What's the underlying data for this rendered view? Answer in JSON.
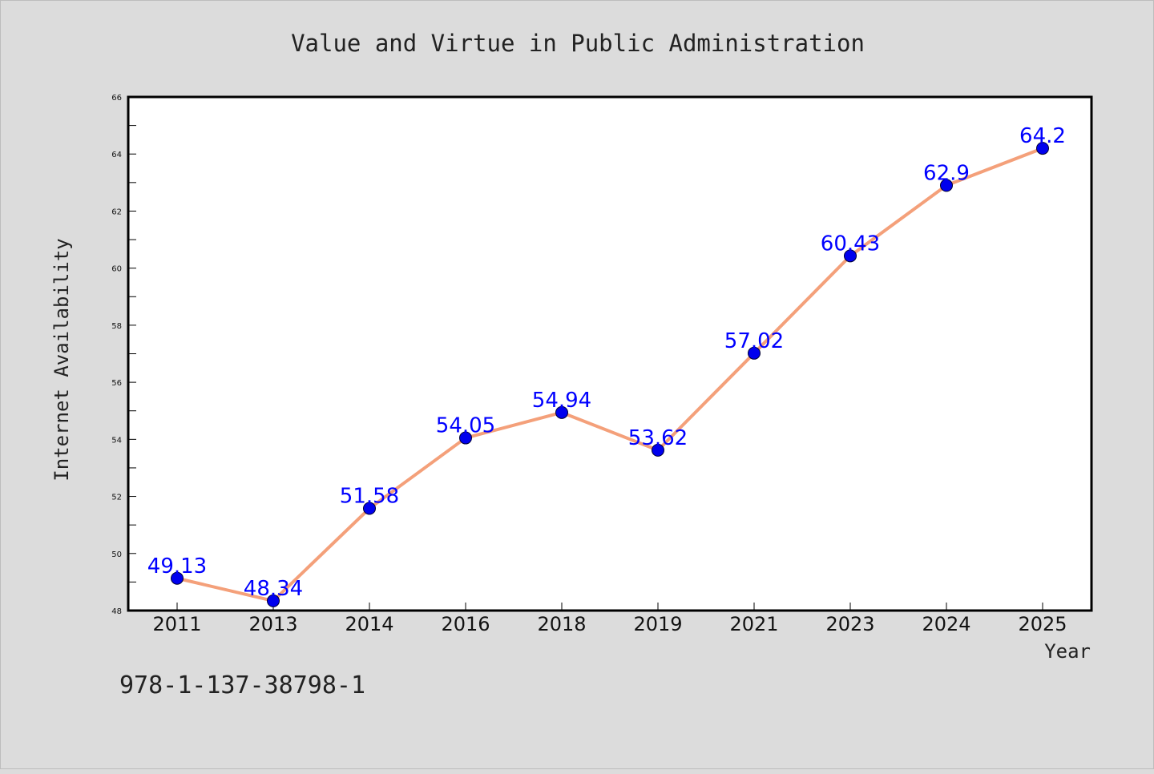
{
  "chart_data": {
    "type": "line",
    "title": "Value and Virtue in Public Administration",
    "xlabel": "Year",
    "ylabel": "Internet Availability",
    "categories": [
      "2011",
      "2013",
      "2014",
      "2016",
      "2018",
      "2019",
      "2021",
      "2023",
      "2024",
      "2025"
    ],
    "series": [
      {
        "values": [
          49.13,
          48.34,
          51.58,
          54.05,
          54.94,
          53.62,
          57.02,
          60.43,
          62.9,
          64.2
        ],
        "data_labels": [
          "49.13",
          "48.34",
          "51.58",
          "54.05",
          "54.94",
          "53.62",
          "57.02",
          "60.43",
          "62.9",
          "64.2"
        ],
        "line_color": "#f4a07a",
        "marker_color": "#0000ee"
      }
    ],
    "ylim": [
      48,
      66
    ],
    "yticks": [
      48,
      50,
      52,
      54,
      56,
      58,
      60,
      62,
      64,
      66
    ],
    "ytick_labels": [
      "48",
      "50",
      "52",
      "54",
      "56",
      "58",
      "60",
      "62",
      "64",
      "66"
    ],
    "grid": false,
    "legend": "none",
    "label_color": "#0000ff"
  },
  "footer": {
    "isbn": "978-1-137-38798-1"
  },
  "colors": {
    "background": "#dcdcdc",
    "plot_background": "#ffffff",
    "axis": "#000000"
  }
}
